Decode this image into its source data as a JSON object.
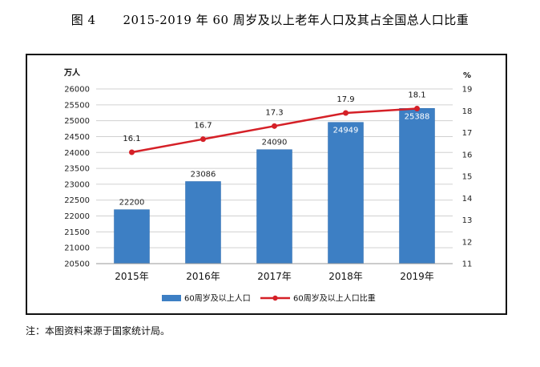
{
  "figure": {
    "label": "图 4",
    "title": "2015-2019 年 60 周岁及以上老年人口及其占全国总人口比重"
  },
  "note": "注：本图资料来源于国家统计局。",
  "colors": {
    "bar": "#3d7fc4",
    "bar_dark": "#2a6aad",
    "line": "#d52027",
    "grid": "#d0d0d0"
  },
  "chart_data": {
    "type": "bar+line",
    "categories": [
      "2015年",
      "2016年",
      "2017年",
      "2018年",
      "2019年"
    ],
    "series": [
      {
        "name": "60周岁及以上人口",
        "type": "bar",
        "axis": "left",
        "values": [
          22200,
          23086,
          24090,
          24949,
          25388
        ],
        "labels": [
          "22200",
          "23086",
          "24090",
          "24949",
          "25388"
        ]
      },
      {
        "name": "60周岁及以上人口比重",
        "type": "line",
        "axis": "right",
        "values": [
          16.1,
          16.7,
          17.3,
          17.9,
          18.1
        ],
        "labels": [
          "16.1",
          "16.7",
          "17.3",
          "17.9",
          "18.1"
        ]
      }
    ],
    "left_axis": {
      "unit": "万人",
      "range": [
        20500,
        26000
      ],
      "ticks": [
        20500,
        21000,
        21500,
        22000,
        22500,
        23000,
        23500,
        24000,
        24500,
        25000,
        25500,
        26000
      ]
    },
    "right_axis": {
      "unit": "%",
      "range": [
        11,
        19
      ],
      "ticks": [
        11,
        12,
        13,
        14,
        15,
        16,
        17,
        18,
        19
      ]
    },
    "grid": true,
    "legend_position": "bottom"
  }
}
